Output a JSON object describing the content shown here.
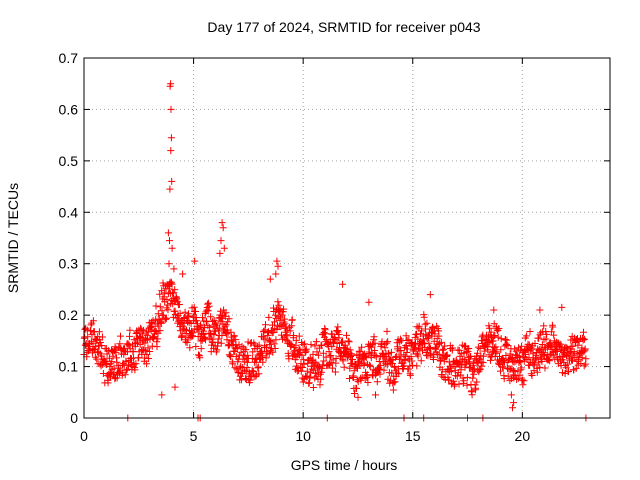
{
  "chart_data": {
    "type": "scatter",
    "title": "Day 177 of 2024, SRMTID for receiver p043",
    "xlabel": "GPS time / hours",
    "ylabel": "SRMTID / TECUs",
    "xlim": [
      0,
      24
    ],
    "ylim": [
      0,
      0.7
    ],
    "xticks": [
      0,
      5,
      10,
      15,
      20
    ],
    "xtick_labels": [
      "0",
      "5",
      "10",
      "15",
      "20"
    ],
    "yticks": [
      0,
      0.1,
      0.2,
      0.3,
      0.4,
      0.5,
      0.6,
      0.7
    ],
    "ytick_labels": [
      "0",
      "0.1",
      "0.2",
      "0.3",
      "0.4",
      "0.5",
      "0.6",
      "0.7"
    ],
    "grid": true,
    "marker": "+",
    "series_color": "#ff0000",
    "time_range_hours": [
      0,
      22.9
    ],
    "baseline_profile": [
      [
        0.0,
        0.15
      ],
      [
        0.5,
        0.14
      ],
      [
        1.0,
        0.12
      ],
      [
        1.5,
        0.11
      ],
      [
        2.0,
        0.12
      ],
      [
        2.5,
        0.14
      ],
      [
        3.0,
        0.16
      ],
      [
        3.5,
        0.19
      ],
      [
        3.9,
        0.24
      ],
      [
        4.3,
        0.2
      ],
      [
        4.8,
        0.16
      ],
      [
        5.2,
        0.17
      ],
      [
        5.6,
        0.19
      ],
      [
        6.0,
        0.15
      ],
      [
        6.4,
        0.18
      ],
      [
        6.8,
        0.12
      ],
      [
        7.5,
        0.11
      ],
      [
        8.0,
        0.12
      ],
      [
        8.5,
        0.16
      ],
      [
        8.9,
        0.2
      ],
      [
        9.3,
        0.18
      ],
      [
        10.0,
        0.12
      ],
      [
        10.5,
        0.11
      ],
      [
        11.0,
        0.13
      ],
      [
        11.5,
        0.14
      ],
      [
        12.0,
        0.13
      ],
      [
        12.5,
        0.1
      ],
      [
        13.0,
        0.12
      ],
      [
        13.5,
        0.11
      ],
      [
        14.0,
        0.1
      ],
      [
        14.5,
        0.11
      ],
      [
        15.0,
        0.12
      ],
      [
        15.5,
        0.16
      ],
      [
        16.0,
        0.15
      ],
      [
        16.5,
        0.1
      ],
      [
        17.0,
        0.1
      ],
      [
        17.5,
        0.11
      ],
      [
        18.0,
        0.1
      ],
      [
        18.5,
        0.14
      ],
      [
        19.0,
        0.13
      ],
      [
        19.5,
        0.11
      ],
      [
        20.0,
        0.1
      ],
      [
        20.5,
        0.12
      ],
      [
        21.0,
        0.14
      ],
      [
        21.5,
        0.12
      ],
      [
        22.0,
        0.13
      ],
      [
        22.5,
        0.12
      ],
      [
        22.9,
        0.12
      ]
    ],
    "spread": 0.035,
    "outliers": [
      {
        "x": 3.95,
        "y": 0.65
      },
      {
        "x": 3.93,
        "y": 0.645
      },
      {
        "x": 3.97,
        "y": 0.6
      },
      {
        "x": 3.99,
        "y": 0.545
      },
      {
        "x": 3.96,
        "y": 0.52
      },
      {
        "x": 4.0,
        "y": 0.46
      },
      {
        "x": 3.92,
        "y": 0.445
      },
      {
        "x": 3.85,
        "y": 0.36
      },
      {
        "x": 3.9,
        "y": 0.345
      },
      {
        "x": 4.02,
        "y": 0.33
      },
      {
        "x": 3.88,
        "y": 0.3
      },
      {
        "x": 4.1,
        "y": 0.29
      },
      {
        "x": 4.5,
        "y": 0.28
      },
      {
        "x": 5.05,
        "y": 0.305
      },
      {
        "x": 6.3,
        "y": 0.38
      },
      {
        "x": 6.35,
        "y": 0.37
      },
      {
        "x": 6.25,
        "y": 0.345
      },
      {
        "x": 6.4,
        "y": 0.33
      },
      {
        "x": 6.2,
        "y": 0.32
      },
      {
        "x": 8.8,
        "y": 0.305
      },
      {
        "x": 8.85,
        "y": 0.295
      },
      {
        "x": 8.75,
        "y": 0.28
      },
      {
        "x": 8.5,
        "y": 0.27
      },
      {
        "x": 11.8,
        "y": 0.26
      },
      {
        "x": 13.0,
        "y": 0.225
      },
      {
        "x": 15.8,
        "y": 0.24
      },
      {
        "x": 18.7,
        "y": 0.21
      },
      {
        "x": 19.5,
        "y": 0.045
      },
      {
        "x": 19.55,
        "y": 0.02
      },
      {
        "x": 19.6,
        "y": 0.03
      },
      {
        "x": 21.8,
        "y": 0.215
      },
      {
        "x": 20.8,
        "y": 0.21
      },
      {
        "x": 12.5,
        "y": 0.04
      },
      {
        "x": 13.3,
        "y": 0.045
      },
      {
        "x": 3.55,
        "y": 0.045
      },
      {
        "x": 4.15,
        "y": 0.06
      }
    ],
    "zero_markers_x": [
      2.0,
      5.2,
      5.3,
      11.1,
      14.6,
      15.5,
      17.5,
      18.2,
      22.9
    ]
  }
}
